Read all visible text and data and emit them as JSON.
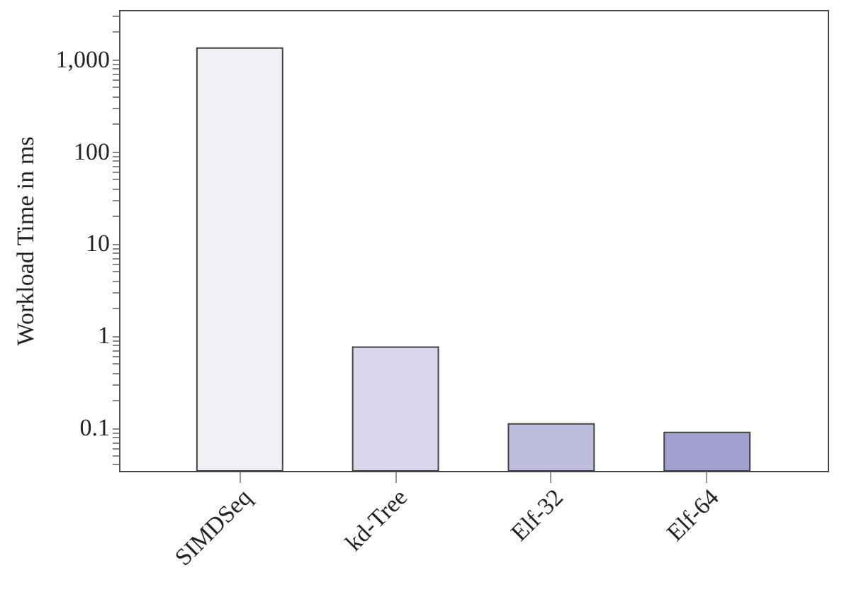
{
  "chart_data": {
    "type": "bar",
    "ylabel": "Workload Time in ms",
    "categories": [
      "SIMDSeq",
      "kd-Tree",
      "Elf-32",
      "Elf-64"
    ],
    "values": [
      1330,
      0.75,
      0.11,
      0.089
    ],
    "colors": [
      "#f0f0f6",
      "#d9d7eb",
      "#bebddd",
      "#a3a1d1"
    ],
    "log": "y",
    "ylim": [
      0.034,
      3450
    ],
    "yticks": [
      {
        "value": 0.04,
        "label": null
      },
      {
        "value": 0.05,
        "label": null
      },
      {
        "value": 0.06,
        "label": null
      },
      {
        "value": 0.07,
        "label": null
      },
      {
        "value": 0.08,
        "label": null
      },
      {
        "value": 0.09,
        "label": null
      },
      {
        "value": 0.1,
        "label": "0.1"
      },
      {
        "value": 0.2,
        "label": null
      },
      {
        "value": 0.3,
        "label": null
      },
      {
        "value": 0.4,
        "label": null
      },
      {
        "value": 0.5,
        "label": null
      },
      {
        "value": 0.6,
        "label": null
      },
      {
        "value": 0.7,
        "label": null
      },
      {
        "value": 0.8,
        "label": null
      },
      {
        "value": 0.9,
        "label": null
      },
      1,
      {
        "value": 2,
        "label": null
      },
      {
        "value": 3,
        "label": null
      },
      {
        "value": 4,
        "label": null
      },
      {
        "value": 5,
        "label": null
      },
      {
        "value": 6,
        "label": null
      },
      {
        "value": 7,
        "label": null
      },
      {
        "value": 8,
        "label": null
      },
      {
        "value": 9,
        "label": null
      },
      10,
      {
        "value": 20,
        "label": null
      },
      {
        "value": 30,
        "label": null
      },
      {
        "value": 40,
        "label": null
      },
      {
        "value": 50,
        "label": null
      },
      {
        "value": 60,
        "label": null
      },
      {
        "value": 70,
        "label": null
      },
      {
        "value": 80,
        "label": null
      },
      {
        "value": 90,
        "label": null
      },
      100,
      {
        "value": 200,
        "label": null
      },
      {
        "value": 300,
        "label": null
      },
      {
        "value": 400,
        "label": null
      },
      {
        "value": 500,
        "label": null
      },
      {
        "value": 600,
        "label": null
      },
      {
        "value": 700,
        "label": null
      },
      {
        "value": 800,
        "label": null
      },
      {
        "value": 900,
        "label": null
      },
      {
        "value": 1000,
        "label": "1,000"
      },
      {
        "value": 2000,
        "label": null
      },
      {
        "value": 3000,
        "label": null
      }
    ],
    "grid": false,
    "legend": false
  }
}
